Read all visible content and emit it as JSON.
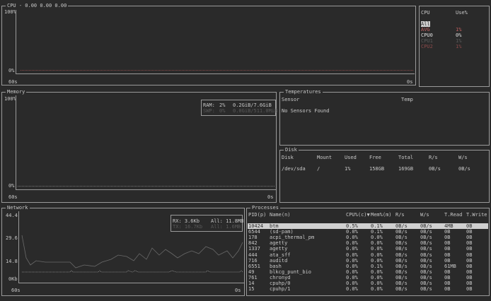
{
  "cpu": {
    "title": "CPU - 0.00 0.00 0.00",
    "y_max": "100%",
    "y_min": "0%",
    "x_start": "60s",
    "x_end": "0s",
    "legend_header": [
      "CPU",
      "Use%"
    ],
    "legend": [
      {
        "name": "All",
        "use": ""
      },
      {
        "name": "AVG",
        "use": "1%"
      },
      {
        "name": "CPU0",
        "use": "0%"
      },
      {
        "name": "CPU1",
        "use": "1%"
      },
      {
        "name": "CPU2",
        "use": "1%"
      }
    ]
  },
  "memory": {
    "title": "Memory",
    "y_max": "100%",
    "y_min": "0%",
    "x_start": "60s",
    "x_end": "0s",
    "ram": {
      "label": "RAM:",
      "pct": "2%",
      "value": "0.2GiB/7.6GiB"
    },
    "swap": {
      "label": "SWP:",
      "pct": "0%",
      "value": "0.0GiB/511.0MiB"
    }
  },
  "temperatures": {
    "title": "Temperatures",
    "headers": [
      "Sensor",
      "Temp"
    ],
    "empty": "No Sensors Found"
  },
  "disk": {
    "title": "Disk",
    "headers": [
      "Disk",
      "Mount",
      "Used",
      "Free",
      "Total",
      "R/s",
      "W/s"
    ],
    "rows": [
      [
        "/dev/sda",
        "/",
        "1%",
        "158GB",
        "169GB",
        "0B/s",
        "0B/s"
      ]
    ]
  },
  "network": {
    "title": "Network",
    "y_ticks": [
      "44.4",
      "29.6",
      "14.8",
      "0Kb"
    ],
    "x_start": "60s",
    "x_end": "0s",
    "rx": "RX: 3.6Kb",
    "all_rx": "All: 11.8MB",
    "tx": "TX: 16.7Kb",
    "all_tx": "All: 1.6MB"
  },
  "processes": {
    "title": "Processes",
    "headers": [
      "PID(p)",
      "Name(n)",
      "CPU%(c)▼",
      "Mem%(m)",
      "R/s",
      "W/s",
      "T.Read",
      "T.Write"
    ],
    "rows": [
      [
        "10424",
        "btm",
        "0.5%",
        "0.1%",
        "0B/s",
        "0B/s",
        "4MB",
        "0B"
      ],
      [
        "6544",
        "(sd-pam)",
        "0.0%",
        "0.1%",
        "0B/s",
        "0B/s",
        "0B",
        "0B"
      ],
      [
        "178",
        "acpi_thermal_pm",
        "0.0%",
        "0.0%",
        "0B/s",
        "0B/s",
        "0B",
        "0B"
      ],
      [
        "842",
        "agetty",
        "0.0%",
        "0.0%",
        "0B/s",
        "0B/s",
        "0B",
        "0B"
      ],
      [
        "1337",
        "agetty",
        "0.0%",
        "0.0%",
        "0B/s",
        "0B/s",
        "0B",
        "0B"
      ],
      [
        "444",
        "ata_sff",
        "0.0%",
        "0.0%",
        "0B/s",
        "0B/s",
        "0B",
        "0B"
      ],
      [
        "716",
        "auditd",
        "0.0%",
        "0.0%",
        "0B/s",
        "0B/s",
        "0B",
        "0B"
      ],
      [
        "6551",
        "bash",
        "0.0%",
        "0.1%",
        "0B/s",
        "0B/s",
        "61MB",
        "0B"
      ],
      [
        "49",
        "blkcg_punt_bio",
        "0.0%",
        "0.0%",
        "0B/s",
        "0B/s",
        "0B",
        "0B"
      ],
      [
        "761",
        "chronyd",
        "0.0%",
        "0.0%",
        "0B/s",
        "0B/s",
        "0B",
        "0B"
      ],
      [
        "14",
        "cpuhp/0",
        "0.0%",
        "0.0%",
        "0B/s",
        "0B/s",
        "0B",
        "0B"
      ],
      [
        "15",
        "cpuhp/1",
        "0.0%",
        "0.0%",
        "0B/s",
        "0B/s",
        "0B",
        "0B"
      ]
    ]
  },
  "colors": {
    "background": "#2a2a2a",
    "border": "#9a9a9a",
    "avg": "#c06060",
    "selected": "#d0d0d0"
  }
}
